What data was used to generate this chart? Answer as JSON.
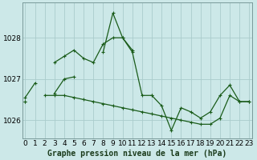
{
  "x": [
    0,
    1,
    2,
    3,
    4,
    5,
    6,
    7,
    8,
    9,
    10,
    11,
    12,
    13,
    14,
    15,
    16,
    17,
    18,
    19,
    20,
    21,
    22,
    23
  ],
  "line1": [
    1026.55,
    1026.9,
    null,
    1026.65,
    1027.0,
    1027.05,
    null,
    null,
    1027.65,
    1028.6,
    1028.0,
    1027.7,
    null,
    1026.6,
    null,
    null,
    null,
    null,
    null,
    null,
    null,
    null,
    null,
    null
  ],
  "line2": [
    1026.45,
    null,
    null,
    1027.4,
    1027.55,
    1027.7,
    1027.5,
    1027.4,
    1027.85,
    1028.0,
    1028.0,
    1027.65,
    1026.6,
    1026.6,
    1026.35,
    1025.75,
    1026.3,
    1026.2,
    1026.05,
    1026.2,
    1026.6,
    1026.85,
    1026.45,
    1026.45
  ],
  "line3": [
    1026.45,
    null,
    1026.6,
    1026.6,
    1026.6,
    1026.55,
    1026.5,
    1026.45,
    1026.4,
    1026.35,
    1026.3,
    1026.25,
    1026.2,
    1026.15,
    1026.1,
    1026.05,
    1026.0,
    1025.95,
    1025.9,
    1025.9,
    1026.05,
    1026.6,
    1026.45,
    1026.45
  ],
  "bg_color": "#cce8e8",
  "grid_color": "#aacccc",
  "line_color": "#1a5c1a",
  "title": "Graphe pression niveau de la mer (hPa)",
  "tick_fontsize": 6.5,
  "title_fontsize": 7.0,
  "xlim": [
    -0.3,
    23.3
  ],
  "ylim": [
    1025.55,
    1028.85
  ],
  "yticks": [
    1026,
    1027,
    1028
  ],
  "xtick_labels": [
    "0",
    "1",
    "2",
    "3",
    "4",
    "5",
    "6",
    "7",
    "8",
    "9",
    "10",
    "11",
    "12",
    "13",
    "14",
    "15",
    "16",
    "17",
    "18",
    "19",
    "20",
    "21",
    "22",
    "23"
  ]
}
